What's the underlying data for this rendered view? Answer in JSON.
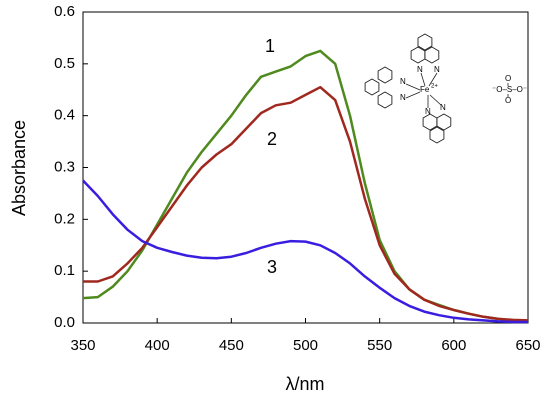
{
  "chart_data": {
    "type": "line",
    "xlabel": "λ/nm",
    "ylabel": "Absorbance",
    "x": [
      350,
      360,
      370,
      380,
      390,
      400,
      410,
      420,
      430,
      440,
      450,
      460,
      470,
      480,
      490,
      500,
      510,
      520,
      530,
      540,
      550,
      560,
      570,
      580,
      590,
      600,
      610,
      620,
      630,
      640,
      650
    ],
    "series": [
      {
        "name": "1",
        "color": "#4e8a1e",
        "values": [
          0.048,
          0.05,
          0.07,
          0.1,
          0.14,
          0.19,
          0.24,
          0.29,
          0.33,
          0.365,
          0.4,
          0.44,
          0.475,
          0.485,
          0.495,
          0.515,
          0.525,
          0.5,
          0.4,
          0.27,
          0.16,
          0.1,
          0.065,
          0.045,
          0.035,
          0.025,
          0.018,
          0.012,
          0.008,
          0.005,
          0.004
        ]
      },
      {
        "name": "2",
        "color": "#a0281e",
        "values": [
          0.08,
          0.08,
          0.09,
          0.115,
          0.145,
          0.185,
          0.225,
          0.265,
          0.3,
          0.325,
          0.345,
          0.375,
          0.405,
          0.42,
          0.425,
          0.44,
          0.455,
          0.43,
          0.35,
          0.24,
          0.15,
          0.095,
          0.065,
          0.045,
          0.033,
          0.025,
          0.018,
          0.012,
          0.008,
          0.006,
          0.005
        ]
      },
      {
        "name": "3",
        "color": "#3a1ee0",
        "values": [
          0.275,
          0.245,
          0.21,
          0.18,
          0.158,
          0.145,
          0.137,
          0.13,
          0.126,
          0.125,
          0.128,
          0.135,
          0.145,
          0.153,
          0.158,
          0.157,
          0.15,
          0.135,
          0.115,
          0.09,
          0.068,
          0.048,
          0.033,
          0.022,
          0.015,
          0.01,
          0.007,
          0.005,
          0.003,
          0.002,
          0.002
        ]
      }
    ],
    "xlim": [
      350,
      650
    ],
    "xticks": [
      350,
      400,
      450,
      500,
      550,
      600,
      650
    ],
    "ylim": [
      0,
      0.6
    ],
    "yticks": [
      {
        "value": 0,
        "label": "0.0"
      },
      0.1,
      0.2,
      0.3,
      0.4,
      0.5,
      0.6
    ],
    "structure": {
      "metal": "Fe",
      "charge": "2+",
      "nitrogen": "N",
      "sulfate": "⁻O–S–O⁻",
      "oxygen": "O"
    }
  }
}
